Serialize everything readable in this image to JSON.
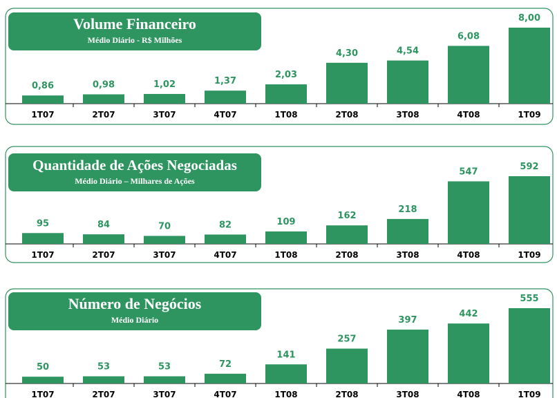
{
  "chart_data": [
    {
      "type": "bar",
      "title": "Volume Financeiro",
      "subtitle": "Médio Diário - R$ Milhões",
      "categories": [
        "1T07",
        "2T07",
        "3T07",
        "4T07",
        "1T08",
        "2T08",
        "3T08",
        "4T08",
        "1T09"
      ],
      "values": [
        0.86,
        0.98,
        1.02,
        1.37,
        2.03,
        4.3,
        4.54,
        6.08,
        8.0
      ],
      "value_labels": [
        "0,86",
        "0,98",
        "1,02",
        "1,37",
        "2,03",
        "4,30",
        "4,54",
        "6,08",
        "8,00"
      ],
      "color": "#2e9460"
    },
    {
      "type": "bar",
      "title": "Quantidade de Ações Negociadas",
      "subtitle": "Médio Diário – Milhares de Ações",
      "categories": [
        "1T07",
        "2T07",
        "3T07",
        "4T07",
        "1T08",
        "2T08",
        "3T08",
        "4T08",
        "1T09"
      ],
      "values": [
        95,
        84,
        70,
        82,
        109,
        162,
        218,
        547,
        592
      ],
      "color": "#2e9460"
    },
    {
      "type": "bar",
      "title": "Número de Negócios",
      "subtitle": "Médio Diário",
      "categories": [
        "1T07",
        "2T07",
        "3T07",
        "4T07",
        "1T08",
        "2T08",
        "3T08",
        "4T08",
        "1T09"
      ],
      "values": [
        50,
        53,
        53,
        72,
        141,
        257,
        397,
        442,
        555
      ],
      "color": "#2e9460"
    }
  ]
}
